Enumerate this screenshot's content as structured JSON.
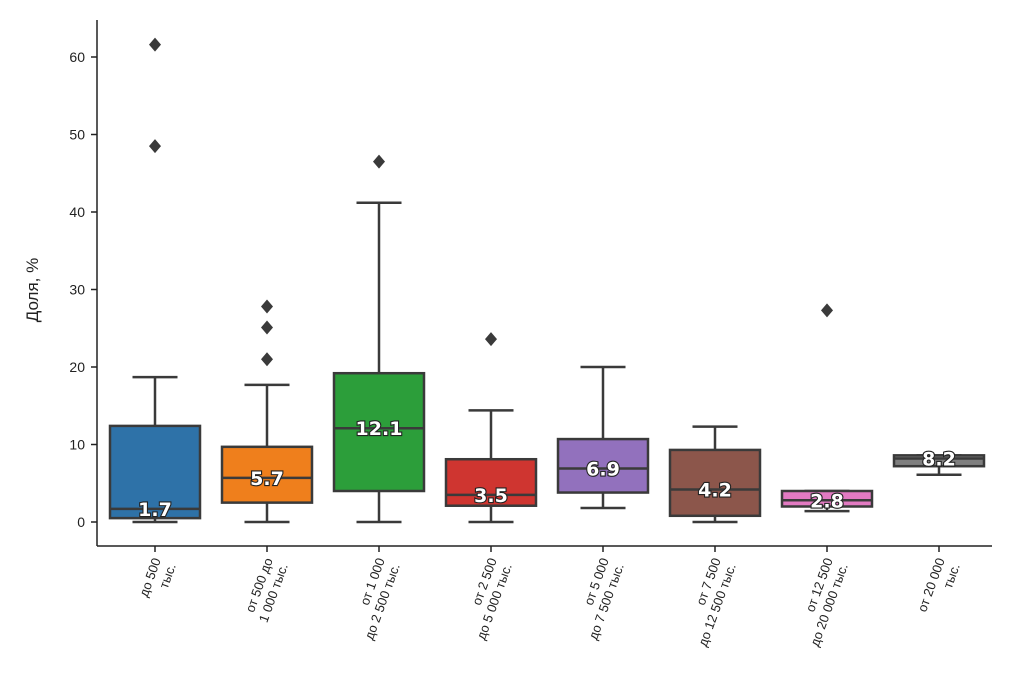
{
  "chart_data": {
    "type": "box",
    "ylabel": "Доля, %",
    "ylim": [
      -3,
      66
    ],
    "yticks": [
      0,
      10,
      20,
      30,
      40,
      50,
      60
    ],
    "grid": false,
    "categories": [
      {
        "label": [
          "до 500",
          "тыс."
        ],
        "color": "#2e72a8",
        "q1": 0.5,
        "median": 1.7,
        "q3": 12.4,
        "whisker_low": 0,
        "whisker_high": 18.7,
        "outliers": [
          48.5,
          61.6
        ],
        "median_label": "1.7"
      },
      {
        "label": [
          "от 500 до",
          "1 000 тыс."
        ],
        "color": "#ef7f1c",
        "q1": 2.5,
        "median": 5.7,
        "q3": 9.7,
        "whisker_low": 0,
        "whisker_high": 17.7,
        "outliers": [
          21.0,
          25.1,
          27.8
        ],
        "median_label": "5.7"
      },
      {
        "label": [
          "от 1 000",
          "до 2 500 тыс."
        ],
        "color": "#2c9e3a",
        "q1": 4.0,
        "median": 12.1,
        "q3": 19.2,
        "whisker_low": 0,
        "whisker_high": 41.2,
        "outliers": [
          46.5
        ],
        "median_label": "12.1"
      },
      {
        "label": [
          "от 2 500",
          "до 5 000 тыс."
        ],
        "color": "#cf3530",
        "q1": 2.1,
        "median": 3.5,
        "q3": 8.1,
        "whisker_low": 0,
        "whisker_high": 14.4,
        "outliers": [
          23.6
        ],
        "median_label": "3.5"
      },
      {
        "label": [
          "от 5 000",
          "до 7 500 тыс."
        ],
        "color": "#9271bd",
        "q1": 3.8,
        "median": 6.9,
        "q3": 10.7,
        "whisker_low": 1.8,
        "whisker_high": 20.0,
        "outliers": [],
        "median_label": "6.9"
      },
      {
        "label": [
          "от 7 500",
          "до 12 500 тыс."
        ],
        "color": "#8c564b",
        "q1": 0.8,
        "median": 4.2,
        "q3": 9.3,
        "whisker_low": 0,
        "whisker_high": 12.3,
        "outliers": [],
        "median_label": "4.2"
      },
      {
        "label": [
          "от 12 500",
          "до 20 000 тыс."
        ],
        "color": "#e27ac2",
        "q1": 2.0,
        "median": 2.8,
        "q3": 4.0,
        "whisker_low": 1.4,
        "whisker_high": 4.0,
        "outliers": [
          27.3
        ],
        "median_label": "2.8"
      },
      {
        "label": [
          "от 20 000",
          "тыс."
        ],
        "color": "#7f7f7f",
        "q1": 7.2,
        "median": 8.2,
        "q3": 8.6,
        "whisker_low": 6.1,
        "whisker_high": 8.6,
        "outliers": [],
        "median_label": "8.2"
      }
    ]
  }
}
